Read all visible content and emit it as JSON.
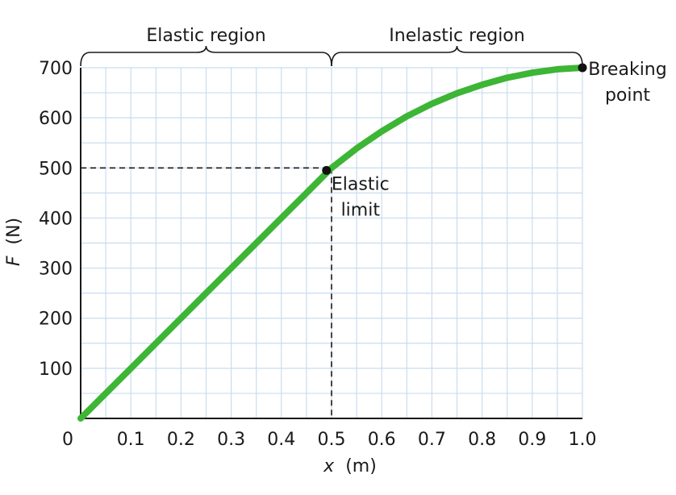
{
  "chart_data": {
    "type": "line",
    "xlabel_var": "x",
    "xlabel_unit": "(m)",
    "ylabel_var": "F",
    "ylabel_unit": "(N)",
    "xlim": [
      0,
      1.0
    ],
    "ylim": [
      0,
      700
    ],
    "grid": true,
    "x_ticks": [
      0.1,
      0.2,
      0.3,
      0.4,
      0.5,
      0.6,
      0.7,
      0.8,
      0.9,
      1.0
    ],
    "x_tick_labels": [
      "0.1",
      "0.2",
      "0.3",
      "0.4",
      "0.5",
      "0.6",
      "0.7",
      "0.8",
      "0.9",
      "1.0"
    ],
    "y_ticks": [
      100,
      200,
      300,
      400,
      500,
      600,
      700
    ],
    "y_tick_labels": [
      "100",
      "200",
      "300",
      "400",
      "500",
      "600",
      "700"
    ],
    "origin_label": "0",
    "series": [
      {
        "color": "#3db535",
        "x": [
          0,
          0.05,
          0.1,
          0.15,
          0.2,
          0.25,
          0.3,
          0.35,
          0.4,
          0.45,
          0.5,
          0.55,
          0.6,
          0.65,
          0.7,
          0.75,
          0.8,
          0.85,
          0.9,
          0.95,
          1.0
        ],
        "y": [
          0,
          50,
          100,
          150,
          200,
          250,
          300,
          350,
          400,
          450,
          500,
          539,
          573,
          603,
          628,
          649,
          666,
          680,
          690,
          697,
          700
        ]
      }
    ],
    "points": [
      {
        "x": 0.49,
        "y": 495,
        "label_lines": [
          "Elastic",
          "limit"
        ]
      },
      {
        "x": 1.0,
        "y": 700,
        "label_lines": [
          "Breaking",
          "point"
        ]
      }
    ],
    "guide_point": {
      "x": 0.5,
      "y": 500
    },
    "regions": [
      {
        "label": "Elastic region",
        "x_start": 0,
        "x_end": 0.5
      },
      {
        "label": "Inelastic region",
        "x_start": 0.5,
        "x_end": 1.0
      }
    ],
    "colors": {
      "line": "#3db535",
      "grid": "#c9dcef",
      "axis": "#1a1a1a"
    }
  }
}
